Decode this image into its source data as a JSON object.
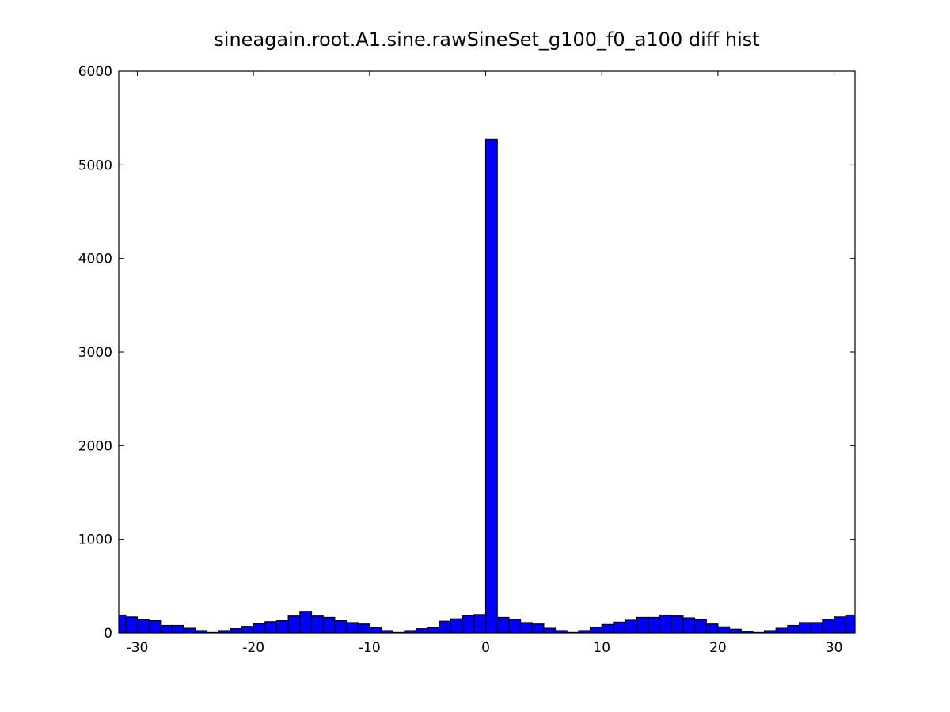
{
  "chart_data": {
    "type": "histogram",
    "title": "sineagain.root.A1.sine.rawSineSet_g100_f0_a100 diff hist",
    "bins": [
      -32,
      -31,
      -30,
      -29,
      -28,
      -27,
      -26,
      -25,
      -24,
      -23,
      -22,
      -21,
      -20,
      -19,
      -18,
      -17,
      -16,
      -15,
      -14,
      -13,
      -12,
      -11,
      -10,
      -9,
      -8,
      -7,
      -6,
      -5,
      -4,
      -3,
      -2,
      -1,
      0,
      1,
      2,
      3,
      4,
      5,
      6,
      7,
      8,
      9,
      10,
      11,
      12,
      13,
      14,
      15,
      16,
      17,
      18,
      19,
      20,
      21,
      22,
      23,
      24,
      25,
      26,
      27,
      28,
      29,
      30,
      31,
      32
    ],
    "values": [
      190,
      170,
      140,
      130,
      80,
      80,
      50,
      25,
      5,
      25,
      45,
      70,
      100,
      120,
      130,
      180,
      230,
      180,
      165,
      130,
      110,
      95,
      60,
      25,
      5,
      25,
      45,
      60,
      125,
      150,
      185,
      195,
      5270,
      165,
      145,
      110,
      95,
      50,
      25,
      5,
      25,
      60,
      90,
      115,
      135,
      165,
      165,
      190,
      180,
      160,
      140,
      95,
      65,
      40,
      20,
      5,
      25,
      50,
      80,
      110,
      110,
      145,
      170,
      190
    ],
    "color": "#0000ff",
    "xlim": [
      -31.6,
      31.8
    ],
    "ylim": [
      0,
      6000
    ],
    "xticks": [
      -30,
      -20,
      -10,
      0,
      10,
      20,
      30
    ],
    "yticks": [
      0,
      1000,
      2000,
      3000,
      4000,
      5000,
      6000
    ]
  }
}
